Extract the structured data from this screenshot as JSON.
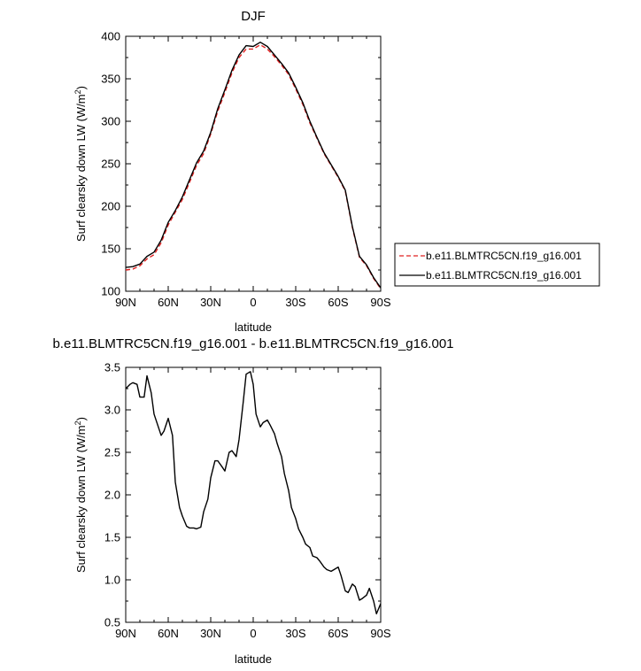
{
  "chart_data": [
    {
      "type": "line",
      "title": "DJF",
      "xlabel": "latitude",
      "ylabel": "Surf clearsky down LW (W/m",
      "ylabel_sup": "2",
      "ylabel_tail": ")",
      "xlim": [
        90,
        -90
      ],
      "ylim": [
        100,
        400
      ],
      "xticks": [
        90,
        60,
        30,
        0,
        -30,
        -60,
        -90
      ],
      "xtick_labels": [
        "90N",
        "60N",
        "30N",
        "0",
        "30S",
        "60S",
        "90S"
      ],
      "yticks": [
        100,
        150,
        200,
        250,
        300,
        350,
        400
      ],
      "ytick_labels": [
        "100",
        "150",
        "200",
        "250",
        "300",
        "350",
        "400"
      ],
      "legend": "right",
      "series": [
        {
          "name": "b.e11.BLMTRC5CN.f19_g16.001",
          "color": "#e02020",
          "style": "dashed",
          "x": [
            90,
            85,
            80,
            75,
            70,
            65,
            60,
            55,
            50,
            45,
            40,
            35,
            30,
            25,
            20,
            15,
            10,
            5,
            0,
            -5,
            -10,
            -15,
            -20,
            -25,
            -30,
            -35,
            -40,
            -45,
            -50,
            -55,
            -60,
            -65,
            -70,
            -75,
            -80,
            -85,
            -90
          ],
          "y": [
            125,
            126,
            130,
            138,
            143,
            157,
            178,
            193,
            208,
            228,
            248,
            262,
            285,
            312,
            334,
            357,
            375,
            385,
            385,
            390,
            385,
            376,
            366,
            355,
            338,
            320,
            298,
            280,
            262,
            248,
            234,
            218,
            175,
            140,
            130,
            115,
            103
          ]
        },
        {
          "name": "b.e11.BLMTRC5CN.f19_g16.001",
          "color": "#000000",
          "style": "solid",
          "x": [
            90,
            85,
            80,
            75,
            70,
            65,
            60,
            55,
            50,
            45,
            40,
            35,
            30,
            25,
            20,
            15,
            10,
            5,
            0,
            -5,
            -10,
            -15,
            -20,
            -25,
            -30,
            -35,
            -40,
            -45,
            -50,
            -55,
            -60,
            -65,
            -70,
            -75,
            -80,
            -85,
            -90
          ],
          "y": [
            128,
            129,
            132,
            141,
            146,
            160,
            181,
            195,
            211,
            231,
            251,
            265,
            287,
            315,
            337,
            360,
            378,
            389,
            388,
            393,
            388,
            378,
            368,
            357,
            340,
            322,
            300,
            281,
            263,
            249,
            235,
            219,
            176,
            141,
            131,
            116,
            104
          ]
        }
      ]
    },
    {
      "type": "line",
      "title": "b.e11.BLMTRC5CN.f19_g16.001 - b.e11.BLMTRC5CN.f19_g16.001",
      "xlabel": "latitude",
      "ylabel": "Surf clearsky down LW (W/m",
      "ylabel_sup": "2",
      "ylabel_tail": ")",
      "xlim": [
        90,
        -90
      ],
      "ylim": [
        0.5,
        3.5
      ],
      "xticks": [
        90,
        60,
        30,
        0,
        -30,
        -60,
        -90
      ],
      "xtick_labels": [
        "90N",
        "60N",
        "30N",
        "0",
        "30S",
        "60S",
        "90S"
      ],
      "yticks": [
        0.5,
        1.0,
        1.5,
        2.0,
        2.5,
        3.0,
        3.5
      ],
      "ytick_labels": [
        "0.5",
        "1.0",
        "1.5",
        "2.0",
        "2.5",
        "3.0",
        "3.5"
      ],
      "series": [
        {
          "color": "#000000",
          "style": "solid",
          "x": [
            90,
            87,
            85,
            82,
            80,
            77,
            75,
            72,
            70,
            67,
            65,
            63,
            60,
            57,
            55,
            52,
            50,
            47,
            45,
            42,
            40,
            37,
            35,
            32,
            30,
            27,
            25,
            22,
            20,
            17,
            15,
            12,
            10,
            7,
            5,
            2,
            0,
            -2,
            -5,
            -7,
            -10,
            -12,
            -15,
            -17,
            -20,
            -22,
            -25,
            -27,
            -30,
            -32,
            -35,
            -37,
            -40,
            -42,
            -45,
            -47,
            -50,
            -52,
            -55,
            -57,
            -60,
            -62,
            -65,
            -67,
            -70,
            -72,
            -75,
            -77,
            -80,
            -82,
            -85,
            -87,
            -90
          ],
          "y": [
            3.25,
            3.3,
            3.32,
            3.3,
            3.15,
            3.15,
            3.4,
            3.2,
            2.95,
            2.8,
            2.7,
            2.75,
            2.9,
            2.7,
            2.15,
            1.85,
            1.75,
            1.63,
            1.61,
            1.61,
            1.6,
            1.62,
            1.8,
            1.95,
            2.2,
            2.4,
            2.4,
            2.33,
            2.28,
            2.5,
            2.52,
            2.45,
            2.65,
            3.1,
            3.42,
            3.45,
            3.3,
            2.95,
            2.8,
            2.85,
            2.88,
            2.82,
            2.72,
            2.6,
            2.45,
            2.25,
            2.05,
            1.85,
            1.72,
            1.6,
            1.5,
            1.42,
            1.38,
            1.28,
            1.26,
            1.22,
            1.15,
            1.12,
            1.1,
            1.12,
            1.15,
            1.05,
            0.87,
            0.85,
            0.95,
            0.92,
            0.76,
            0.78,
            0.82,
            0.9,
            0.75,
            0.6,
            0.72
          ]
        }
      ]
    }
  ]
}
